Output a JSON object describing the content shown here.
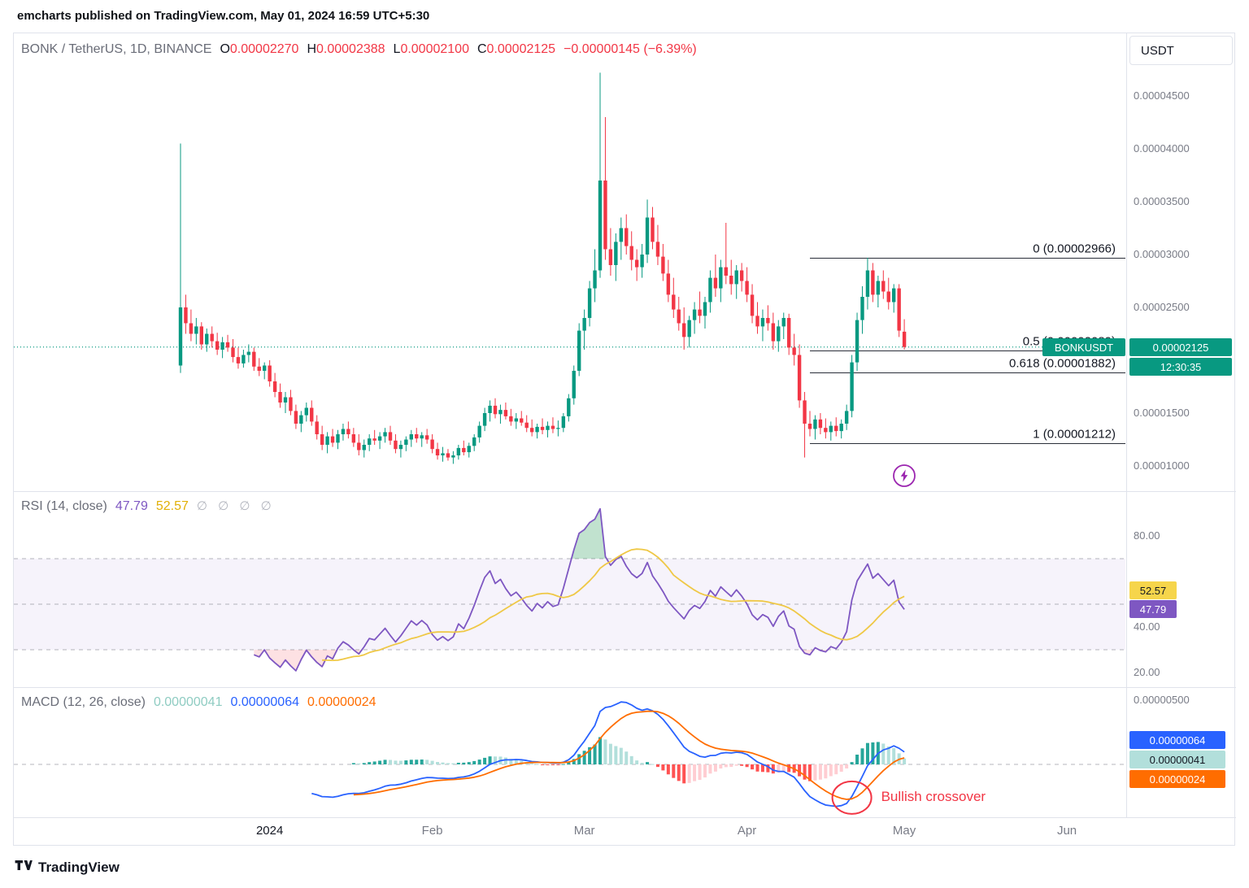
{
  "ui": {
    "header": {
      "byline": "emcharts published on TradingView.com, May 01, 2024 16:59 UTC+5:30"
    },
    "toolbar": {
      "currency": "USDT"
    },
    "main_legend": {
      "title": "BONK / TetherUS, 1D, BINANCE",
      "o_label": "O",
      "o": "0.00002270",
      "h_label": "H",
      "h": "0.00002388",
      "l_label": "L",
      "l": "0.00002100",
      "c_label": "C",
      "c": "0.00002125",
      "change": "−0.00000145 (−6.39%)"
    },
    "price_scale": {
      "labels": [
        "0.00004500",
        "0.00004000",
        "0.00003500",
        "0.00003000",
        "0.00002500",
        "0.00001500",
        "0.00001000"
      ],
      "symbol_badge": "BONKUSDT",
      "price_badge": "0.00002125",
      "countdown_badge": "12:30:35"
    },
    "rsi_legend": {
      "title": "RSI (14, close)",
      "rsi_value": "47.79",
      "ma_value": "52.57",
      "empty_args": "∅ ∅ ∅ ∅"
    },
    "rsi_scale": {
      "labels": [
        "80.00",
        "40.00",
        "20.00"
      ],
      "ma_badge": "52.57",
      "rsi_badge": "47.79"
    },
    "macd_legend": {
      "title": "MACD (12, 26, close)",
      "histogram_value": "0.00000041",
      "macd_value": "0.00000064",
      "signal_value": "0.00000024"
    },
    "macd_scale": {
      "labels": [
        "0.00000500"
      ],
      "macd_badge": "0.00000064",
      "histogram_badge": "0.00000041",
      "signal_badge": "0.00000024"
    },
    "time_axis": {
      "items": [
        {
          "text": "2024",
          "candle_index": 17,
          "major": true
        },
        {
          "text": "Feb",
          "candle_index": 48
        },
        {
          "text": "Mar",
          "candle_index": 77
        },
        {
          "text": "Apr",
          "candle_index": 108
        },
        {
          "text": "May",
          "candle_index": 138
        },
        {
          "text": "Jun",
          "candle_index": 169
        }
      ]
    },
    "annotation": {
      "text": "Bullish crossover"
    },
    "footer": {
      "brand": "TradingView"
    }
  },
  "colors": {
    "up": "#089981",
    "down": "#F23645",
    "value_red": "#F23645",
    "rsi_line": "#7E57C2",
    "rsi_ma": "#EFC846",
    "overbought_fill": "#229653",
    "oversold_fill": "#F23645",
    "macd_line": "#2962FF",
    "signal_line": "#FF6D00",
    "hist_up": "#26A69A",
    "hist_up_weak": "#B2DFDB",
    "hist_down": "#FF5252",
    "hist_down_weak": "#FFCDD2",
    "badge_yellow": "#F6D54B",
    "text_dark": "#131722",
    "text_gray": "#787B86",
    "border": "#E0E3EB",
    "fib_line": "#2A2E39",
    "annotation_red": "#F23645",
    "lightning": "#9C27B0"
  },
  "chart_data": [
    {
      "type": "candlestick",
      "symbol": "BONKUSDT",
      "interval": "1D",
      "exchange": "BINANCE",
      "price_unit": 1e-05,
      "ylim": [
        0.9,
        4.9
      ],
      "y_ticks": [
        4.5,
        4.0,
        3.5,
        3.0,
        2.5,
        1.5,
        1.0
      ],
      "current_price": 2.125,
      "fib_x_start_index": 120,
      "fib_retracement": [
        {
          "label": "0 (0.00002966)",
          "value": 2.966
        },
        {
          "label": "0.5 (0.00002089)",
          "value": 2.089
        },
        {
          "label": "0.618 (0.00001882)",
          "value": 1.882
        },
        {
          "label": "1 (0.00001212)",
          "value": 1.212
        }
      ],
      "ohlc": [
        [
          1.95,
          4.05,
          1.88,
          2.5
        ],
        [
          2.5,
          2.62,
          2.25,
          2.35
        ],
        [
          2.35,
          2.48,
          2.18,
          2.25
        ],
        [
          2.25,
          2.4,
          2.15,
          2.32
        ],
        [
          2.32,
          2.36,
          2.1,
          2.15
        ],
        [
          2.15,
          2.3,
          2.08,
          2.25
        ],
        [
          2.25,
          2.32,
          2.12,
          2.18
        ],
        [
          2.18,
          2.26,
          2.05,
          2.1
        ],
        [
          2.1,
          2.22,
          2.02,
          2.17
        ],
        [
          2.17,
          2.24,
          2.08,
          2.12
        ],
        [
          2.12,
          2.2,
          1.98,
          2.03
        ],
        [
          2.03,
          2.12,
          1.92,
          1.97
        ],
        [
          1.97,
          2.1,
          1.93,
          2.05
        ],
        [
          2.05,
          2.15,
          1.98,
          2.08
        ],
        [
          2.08,
          2.12,
          1.9,
          1.94
        ],
        [
          1.94,
          2.02,
          1.85,
          1.9
        ],
        [
          1.9,
          1.98,
          1.82,
          1.95
        ],
        [
          1.95,
          2.0,
          1.75,
          1.8
        ],
        [
          1.8,
          1.88,
          1.65,
          1.7
        ],
        [
          1.7,
          1.78,
          1.55,
          1.6
        ],
        [
          1.6,
          1.7,
          1.5,
          1.65
        ],
        [
          1.65,
          1.72,
          1.48,
          1.52
        ],
        [
          1.52,
          1.58,
          1.35,
          1.4
        ],
        [
          1.4,
          1.52,
          1.32,
          1.48
        ],
        [
          1.48,
          1.6,
          1.42,
          1.55
        ],
        [
          1.55,
          1.62,
          1.38,
          1.42
        ],
        [
          1.42,
          1.48,
          1.25,
          1.3
        ],
        [
          1.3,
          1.38,
          1.15,
          1.2
        ],
        [
          1.2,
          1.32,
          1.12,
          1.28
        ],
        [
          1.28,
          1.35,
          1.18,
          1.22
        ],
        [
          1.22,
          1.34,
          1.16,
          1.3
        ],
        [
          1.3,
          1.4,
          1.24,
          1.35
        ],
        [
          1.35,
          1.42,
          1.26,
          1.3
        ],
        [
          1.3,
          1.36,
          1.18,
          1.22
        ],
        [
          1.22,
          1.3,
          1.1,
          1.15
        ],
        [
          1.15,
          1.25,
          1.08,
          1.2
        ],
        [
          1.2,
          1.3,
          1.14,
          1.26
        ],
        [
          1.26,
          1.34,
          1.2,
          1.24
        ],
        [
          1.24,
          1.32,
          1.16,
          1.28
        ],
        [
          1.28,
          1.36,
          1.22,
          1.32
        ],
        [
          1.32,
          1.38,
          1.2,
          1.24
        ],
        [
          1.24,
          1.3,
          1.12,
          1.16
        ],
        [
          1.16,
          1.24,
          1.08,
          1.2
        ],
        [
          1.2,
          1.28,
          1.14,
          1.25
        ],
        [
          1.25,
          1.34,
          1.18,
          1.3
        ],
        [
          1.3,
          1.36,
          1.22,
          1.26
        ],
        [
          1.26,
          1.32,
          1.18,
          1.29
        ],
        [
          1.29,
          1.35,
          1.21,
          1.25
        ],
        [
          1.25,
          1.3,
          1.12,
          1.16
        ],
        [
          1.16,
          1.22,
          1.06,
          1.1
        ],
        [
          1.1,
          1.18,
          1.04,
          1.12
        ],
        [
          1.12,
          1.16,
          1.05,
          1.08
        ],
        [
          1.08,
          1.14,
          1.02,
          1.1
        ],
        [
          1.1,
          1.2,
          1.06,
          1.17
        ],
        [
          1.17,
          1.24,
          1.1,
          1.13
        ],
        [
          1.13,
          1.22,
          1.08,
          1.19
        ],
        [
          1.19,
          1.3,
          1.14,
          1.27
        ],
        [
          1.27,
          1.42,
          1.22,
          1.38
        ],
        [
          1.38,
          1.55,
          1.33,
          1.5
        ],
        [
          1.5,
          1.62,
          1.42,
          1.57
        ],
        [
          1.57,
          1.64,
          1.45,
          1.49
        ],
        [
          1.49,
          1.58,
          1.4,
          1.53
        ],
        [
          1.53,
          1.6,
          1.44,
          1.47
        ],
        [
          1.47,
          1.54,
          1.38,
          1.42
        ],
        [
          1.42,
          1.5,
          1.35,
          1.45
        ],
        [
          1.45,
          1.52,
          1.38,
          1.41
        ],
        [
          1.41,
          1.48,
          1.32,
          1.36
        ],
        [
          1.36,
          1.44,
          1.28,
          1.32
        ],
        [
          1.32,
          1.4,
          1.26,
          1.37
        ],
        [
          1.37,
          1.45,
          1.3,
          1.34
        ],
        [
          1.34,
          1.42,
          1.27,
          1.38
        ],
        [
          1.38,
          1.46,
          1.31,
          1.35
        ],
        [
          1.35,
          1.43,
          1.28,
          1.36
        ],
        [
          1.36,
          1.5,
          1.32,
          1.47
        ],
        [
          1.47,
          1.68,
          1.42,
          1.64
        ],
        [
          1.64,
          1.95,
          1.58,
          1.9
        ],
        [
          1.9,
          2.35,
          1.85,
          2.28
        ],
        [
          2.28,
          2.48,
          2.1,
          2.4
        ],
        [
          2.4,
          2.75,
          2.32,
          2.68
        ],
        [
          2.68,
          3.05,
          2.55,
          2.85
        ],
        [
          2.85,
          4.72,
          2.78,
          3.7
        ],
        [
          3.7,
          4.3,
          2.95,
          3.05
        ],
        [
          3.05,
          3.25,
          2.8,
          2.9
        ],
        [
          2.9,
          3.2,
          2.75,
          3.12
        ],
        [
          3.12,
          3.35,
          2.95,
          3.25
        ],
        [
          3.25,
          3.38,
          3.0,
          3.08
        ],
        [
          3.08,
          3.22,
          2.85,
          2.95
        ],
        [
          2.95,
          3.05,
          2.75,
          2.88
        ],
        [
          2.88,
          3.1,
          2.78,
          3.0
        ],
        [
          3.0,
          3.52,
          2.92,
          3.35
        ],
        [
          3.35,
          3.45,
          3.05,
          3.12
        ],
        [
          3.12,
          3.28,
          2.9,
          2.98
        ],
        [
          2.98,
          3.1,
          2.75,
          2.82
        ],
        [
          2.82,
          2.95,
          2.55,
          2.62
        ],
        [
          2.62,
          2.78,
          2.4,
          2.48
        ],
        [
          2.48,
          2.6,
          2.28,
          2.35
        ],
        [
          2.35,
          2.5,
          2.1,
          2.22
        ],
        [
          2.22,
          2.42,
          2.12,
          2.38
        ],
        [
          2.38,
          2.55,
          2.25,
          2.48
        ],
        [
          2.48,
          2.65,
          2.35,
          2.42
        ],
        [
          2.42,
          2.6,
          2.3,
          2.55
        ],
        [
          2.55,
          2.85,
          2.45,
          2.78
        ],
        [
          2.78,
          3.0,
          2.6,
          2.68
        ],
        [
          2.68,
          2.95,
          2.55,
          2.88
        ],
        [
          2.88,
          3.3,
          2.72,
          2.8
        ],
        [
          2.8,
          2.95,
          2.62,
          2.72
        ],
        [
          2.72,
          2.9,
          2.58,
          2.85
        ],
        [
          2.85,
          2.92,
          2.65,
          2.75
        ],
        [
          2.75,
          2.88,
          2.55,
          2.62
        ],
        [
          2.62,
          2.72,
          2.35,
          2.42
        ],
        [
          2.42,
          2.55,
          2.25,
          2.32
        ],
        [
          2.32,
          2.48,
          2.18,
          2.4
        ],
        [
          2.4,
          2.52,
          2.28,
          2.35
        ],
        [
          2.35,
          2.45,
          2.1,
          2.18
        ],
        [
          2.18,
          2.38,
          2.08,
          2.32
        ],
        [
          2.32,
          2.45,
          2.2,
          2.4
        ],
        [
          2.4,
          2.44,
          2.05,
          2.12
        ],
        [
          2.12,
          2.25,
          1.95,
          2.05
        ],
        [
          2.05,
          2.15,
          1.55,
          1.62
        ],
        [
          1.62,
          1.7,
          1.08,
          1.4
        ],
        [
          1.4,
          1.52,
          1.28,
          1.35
        ],
        [
          1.35,
          1.48,
          1.25,
          1.44
        ],
        [
          1.44,
          1.5,
          1.3,
          1.36
        ],
        [
          1.36,
          1.45,
          1.26,
          1.32
        ],
        [
          1.32,
          1.42,
          1.24,
          1.38
        ],
        [
          1.38,
          1.46,
          1.28,
          1.33
        ],
        [
          1.33,
          1.44,
          1.26,
          1.4
        ],
        [
          1.4,
          1.58,
          1.34,
          1.52
        ],
        [
          1.52,
          2.05,
          1.46,
          1.98
        ],
        [
          1.98,
          2.45,
          1.9,
          2.38
        ],
        [
          2.38,
          2.7,
          2.25,
          2.6
        ],
        [
          2.6,
          2.97,
          2.48,
          2.85
        ],
        [
          2.85,
          2.92,
          2.55,
          2.62
        ],
        [
          2.62,
          2.8,
          2.5,
          2.75
        ],
        [
          2.75,
          2.85,
          2.58,
          2.65
        ],
        [
          2.65,
          2.78,
          2.48,
          2.55
        ],
        [
          2.55,
          2.72,
          2.45,
          2.68
        ],
        [
          2.68,
          2.72,
          2.22,
          2.28
        ],
        [
          2.27,
          2.388,
          2.1,
          2.125
        ]
      ]
    },
    {
      "type": "line",
      "name": "RSI (14, close)",
      "length": 14,
      "source": "close",
      "computed_from": "chart_data[0].ohlc",
      "series": [
        {
          "name": "RSI",
          "current": 47.79
        },
        {
          "name": "RSI-based MA",
          "current": 52.57
        }
      ],
      "levels": [
        70,
        50,
        30
      ],
      "y_ticks": [
        80,
        40,
        20
      ],
      "ylim": [
        15,
        97
      ]
    },
    {
      "type": "macd",
      "name": "MACD (12, 26, close)",
      "fast": 12,
      "slow": 26,
      "signal": 9,
      "unit": 1e-05,
      "current": {
        "macd": 0.064,
        "signal": 0.024,
        "histogram": 0.041
      },
      "y_ticks": [
        0.5
      ],
      "zero_line": 0
    }
  ]
}
